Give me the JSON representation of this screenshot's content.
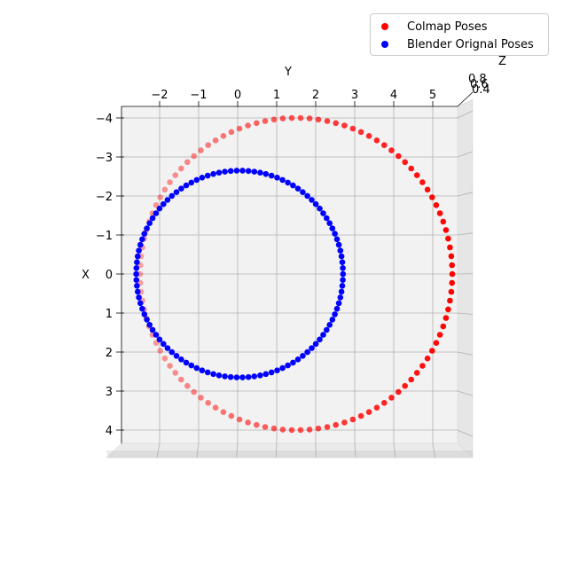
{
  "chart_data": {
    "type": "scatter",
    "projection": "3d",
    "title": "",
    "xlabel": "X",
    "ylabel": "Y",
    "zlabel": "Z",
    "x_ticks": [
      "−4",
      "−3",
      "−2",
      "−1",
      "0",
      "1",
      "2",
      "3",
      "4"
    ],
    "y_ticks": [
      "−2",
      "−1",
      "0",
      "1",
      "2",
      "3",
      "4",
      "5"
    ],
    "z_ticks": [
      "0.8",
      "0.6",
      "0.4"
    ],
    "xlim": [
      -4.4,
      4.6
    ],
    "ylim": [
      -3.0,
      5.9
    ],
    "grid": true,
    "legend_position": "top-right",
    "series": [
      {
        "name": "Colmap Poses",
        "color": "#ff0000",
        "shape": "circle",
        "center": {
          "y": 1.5,
          "x": 0.0
        },
        "radius": {
          "y": 4.0,
          "x": 4.0
        },
        "num_points": 110
      },
      {
        "name": "Blender Orignal Poses",
        "color": "#0000ff",
        "shape": "circle",
        "center": {
          "y": 0.05,
          "x": 0.0
        },
        "radius": {
          "y": 2.65,
          "x": 2.65
        },
        "num_points": 110
      }
    ]
  }
}
